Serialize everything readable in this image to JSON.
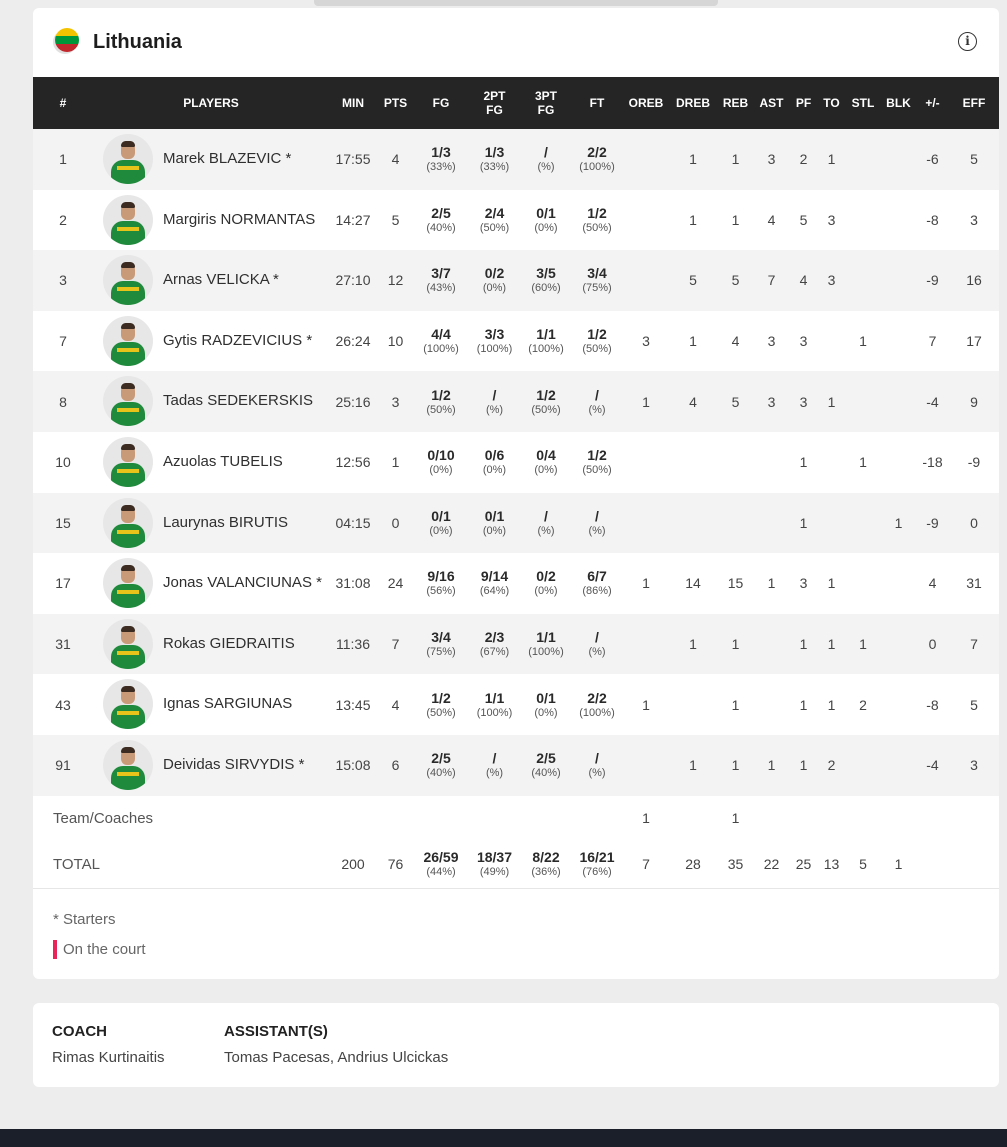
{
  "team": {
    "name": "Lithuania",
    "flag_colors": [
      "#f4c300",
      "#00963a",
      "#c1272d"
    ]
  },
  "icons": {
    "info": "info-icon"
  },
  "columns": [
    "#",
    "PLAYERS",
    "MIN",
    "PTS",
    "FG",
    "2PT FG",
    "3PT FG",
    "FT",
    "OREB",
    "DREB",
    "REB",
    "AST",
    "PF",
    "TO",
    "STL",
    "BLK",
    "+/-",
    "EFF"
  ],
  "players": [
    {
      "no": "1",
      "name": "Marek BLAZEVIC *",
      "min": "17:55",
      "pts": "4",
      "fg": "1/3",
      "fg_pct": "(33%)",
      "fg2": "1/3",
      "fg2_pct": "(33%)",
      "fg3": "/",
      "fg3_pct": "(%)",
      "ft": "2/2",
      "ft_pct": "(100%)",
      "oreb": "",
      "dreb": "1",
      "reb": "1",
      "ast": "3",
      "pf": "2",
      "to": "1",
      "stl": "",
      "blk": "",
      "pm": "-6",
      "eff": "5"
    },
    {
      "no": "2",
      "name": "Margiris NORMANTAS",
      "min": "14:27",
      "pts": "5",
      "fg": "2/5",
      "fg_pct": "(40%)",
      "fg2": "2/4",
      "fg2_pct": "(50%)",
      "fg3": "0/1",
      "fg3_pct": "(0%)",
      "ft": "1/2",
      "ft_pct": "(50%)",
      "oreb": "",
      "dreb": "1",
      "reb": "1",
      "ast": "4",
      "pf": "5",
      "to": "3",
      "stl": "",
      "blk": "",
      "pm": "-8",
      "eff": "3"
    },
    {
      "no": "3",
      "name": "Arnas VELICKA *",
      "min": "27:10",
      "pts": "12",
      "fg": "3/7",
      "fg_pct": "(43%)",
      "fg2": "0/2",
      "fg2_pct": "(0%)",
      "fg3": "3/5",
      "fg3_pct": "(60%)",
      "ft": "3/4",
      "ft_pct": "(75%)",
      "oreb": "",
      "dreb": "5",
      "reb": "5",
      "ast": "7",
      "pf": "4",
      "to": "3",
      "stl": "",
      "blk": "",
      "pm": "-9",
      "eff": "16"
    },
    {
      "no": "7",
      "name": "Gytis RADZEVICIUS *",
      "min": "26:24",
      "pts": "10",
      "fg": "4/4",
      "fg_pct": "(100%)",
      "fg2": "3/3",
      "fg2_pct": "(100%)",
      "fg3": "1/1",
      "fg3_pct": "(100%)",
      "ft": "1/2",
      "ft_pct": "(50%)",
      "oreb": "3",
      "dreb": "1",
      "reb": "4",
      "ast": "3",
      "pf": "3",
      "to": "",
      "stl": "1",
      "blk": "",
      "pm": "7",
      "eff": "17"
    },
    {
      "no": "8",
      "name": "Tadas SEDEKERSKIS",
      "min": "25:16",
      "pts": "3",
      "fg": "1/2",
      "fg_pct": "(50%)",
      "fg2": "/",
      "fg2_pct": "(%)",
      "fg3": "1/2",
      "fg3_pct": "(50%)",
      "ft": "/",
      "ft_pct": "(%)",
      "oreb": "1",
      "dreb": "4",
      "reb": "5",
      "ast": "3",
      "pf": "3",
      "to": "1",
      "stl": "",
      "blk": "",
      "pm": "-4",
      "eff": "9"
    },
    {
      "no": "10",
      "name": "Azuolas TUBELIS",
      "min": "12:56",
      "pts": "1",
      "fg": "0/10",
      "fg_pct": "(0%)",
      "fg2": "0/6",
      "fg2_pct": "(0%)",
      "fg3": "0/4",
      "fg3_pct": "(0%)",
      "ft": "1/2",
      "ft_pct": "(50%)",
      "oreb": "",
      "dreb": "",
      "reb": "",
      "ast": "",
      "pf": "1",
      "to": "",
      "stl": "1",
      "blk": "",
      "pm": "-18",
      "eff": "-9"
    },
    {
      "no": "15",
      "name": "Laurynas BIRUTIS",
      "min": "04:15",
      "pts": "0",
      "fg": "0/1",
      "fg_pct": "(0%)",
      "fg2": "0/1",
      "fg2_pct": "(0%)",
      "fg3": "/",
      "fg3_pct": "(%)",
      "ft": "/",
      "ft_pct": "(%)",
      "oreb": "",
      "dreb": "",
      "reb": "",
      "ast": "",
      "pf": "1",
      "to": "",
      "stl": "",
      "blk": "1",
      "pm": "-9",
      "eff": "0"
    },
    {
      "no": "17",
      "name": "Jonas VALANCIUNAS *",
      "min": "31:08",
      "pts": "24",
      "fg": "9/16",
      "fg_pct": "(56%)",
      "fg2": "9/14",
      "fg2_pct": "(64%)",
      "fg3": "0/2",
      "fg3_pct": "(0%)",
      "ft": "6/7",
      "ft_pct": "(86%)",
      "oreb": "1",
      "dreb": "14",
      "reb": "15",
      "ast": "1",
      "pf": "3",
      "to": "1",
      "stl": "",
      "blk": "",
      "pm": "4",
      "eff": "31"
    },
    {
      "no": "31",
      "name": "Rokas GIEDRAITIS",
      "min": "11:36",
      "pts": "7",
      "fg": "3/4",
      "fg_pct": "(75%)",
      "fg2": "2/3",
      "fg2_pct": "(67%)",
      "fg3": "1/1",
      "fg3_pct": "(100%)",
      "ft": "/",
      "ft_pct": "(%)",
      "oreb": "",
      "dreb": "1",
      "reb": "1",
      "ast": "",
      "pf": "1",
      "to": "1",
      "stl": "1",
      "blk": "",
      "pm": "0",
      "eff": "7"
    },
    {
      "no": "43",
      "name": "Ignas SARGIUNAS",
      "min": "13:45",
      "pts": "4",
      "fg": "1/2",
      "fg_pct": "(50%)",
      "fg2": "1/1",
      "fg2_pct": "(100%)",
      "fg3": "0/1",
      "fg3_pct": "(0%)",
      "ft": "2/2",
      "ft_pct": "(100%)",
      "oreb": "1",
      "dreb": "",
      "reb": "1",
      "ast": "",
      "pf": "1",
      "to": "1",
      "stl": "2",
      "blk": "",
      "pm": "-8",
      "eff": "5"
    },
    {
      "no": "91",
      "name": "Deividas SIRVYDIS *",
      "min": "15:08",
      "pts": "6",
      "fg": "2/5",
      "fg_pct": "(40%)",
      "fg2": "/",
      "fg2_pct": "(%)",
      "fg3": "2/5",
      "fg3_pct": "(40%)",
      "ft": "/",
      "ft_pct": "(%)",
      "oreb": "",
      "dreb": "1",
      "reb": "1",
      "ast": "1",
      "pf": "1",
      "to": "2",
      "stl": "",
      "blk": "",
      "pm": "-4",
      "eff": "3"
    }
  ],
  "team_row": {
    "label": "Team/Coaches",
    "oreb": "1",
    "reb": "1"
  },
  "total": {
    "label": "TOTAL",
    "min": "200",
    "pts": "76",
    "fg": "26/59",
    "fg_pct": "(44%)",
    "fg2": "18/37",
    "fg2_pct": "(49%)",
    "fg3": "8/22",
    "fg3_pct": "(36%)",
    "ft": "16/21",
    "ft_pct": "(76%)",
    "oreb": "7",
    "dreb": "28",
    "reb": "35",
    "ast": "22",
    "pf": "25",
    "to": "13",
    "stl": "5",
    "blk": "1",
    "pm": "",
    "eff": ""
  },
  "legend": {
    "starters": "* Starters",
    "on_court": "On the court",
    "on_court_color": "#e8245b"
  },
  "coach": {
    "label": "COACH",
    "name": "Rimas Kurtinaitis",
    "assistants_label": "ASSISTANT(S)",
    "assistants": "Tomas Pacesas, Andrius Ulcickas"
  }
}
